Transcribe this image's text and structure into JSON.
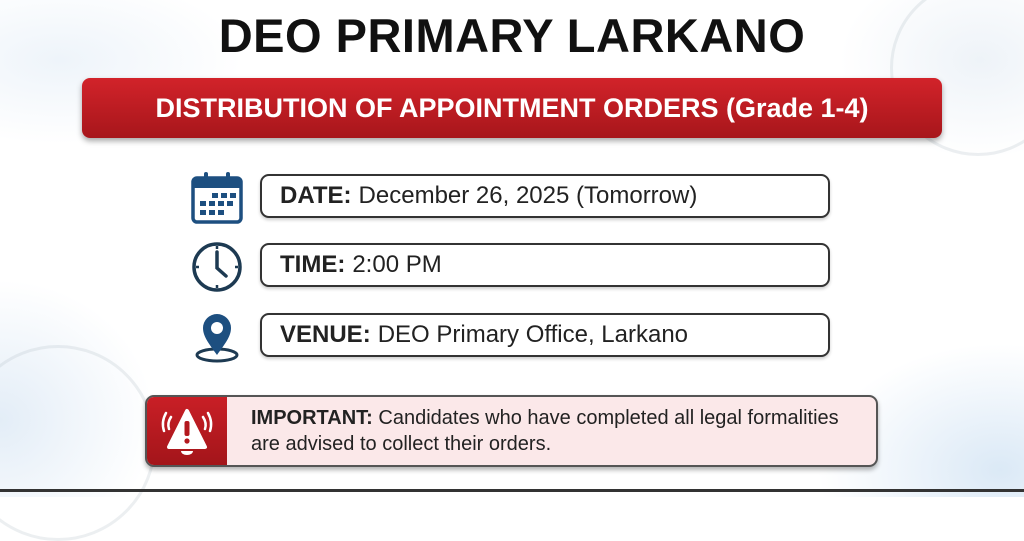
{
  "title": "DEO PRIMARY LARKANO",
  "banner": "DISTRIBUTION OF APPOINTMENT ORDERS (Grade 1-4)",
  "details": [
    {
      "icon": "calendar-icon",
      "label": "DATE:",
      "value": "December 26, 2025 (Tomorrow)"
    },
    {
      "icon": "clock-icon",
      "label": "TIME:",
      "value": "2:00 PM"
    },
    {
      "icon": "location-pin-icon",
      "label": "VENUE:",
      "value": "DEO Primary Office, Larkano"
    }
  ],
  "important": {
    "icon": "alarm-warning-icon",
    "label": "IMPORTANT:",
    "text": "Candidates who have completed all legal formalities are advised to collect their orders."
  },
  "colors": {
    "accent_red": "#c91f26",
    "icon_blue": "#1d4f80",
    "important_bg": "#fbe8e9"
  }
}
